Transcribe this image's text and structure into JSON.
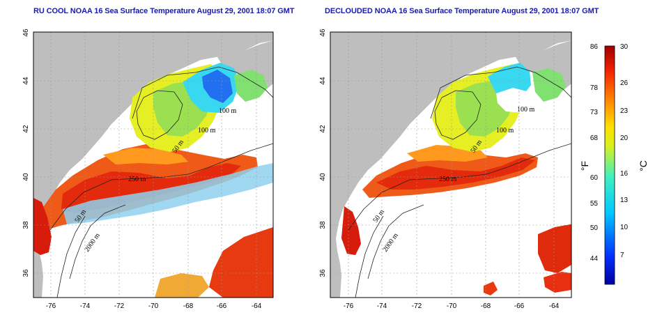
{
  "maps": [
    {
      "title": "RU COOL NOAA 16 Sea Surface Temperature August 29, 2001 18:07 GMT",
      "x_ticks": [
        "-76",
        "-74",
        "-72",
        "-70",
        "-68",
        "-66",
        "-64"
      ],
      "y_ticks": [
        "46",
        "44",
        "42",
        "40",
        "38",
        "36"
      ],
      "contour_labels": [
        "100 m",
        "100 m",
        "50 m",
        "250 m",
        "50 m",
        "2000 m"
      ]
    },
    {
      "title": "DECLOUDED NOAA 16 Sea Surface Temperature August 29, 2001 18:07 GMT",
      "x_ticks": [
        "-76",
        "-74",
        "-72",
        "-70",
        "-68",
        "-66",
        "-64"
      ],
      "y_ticks": [
        "46",
        "44",
        "42",
        "40",
        "38",
        "36"
      ],
      "contour_labels": [
        "100 m",
        "100 m",
        "50 m",
        "250 m",
        "50 m",
        "2000 m"
      ]
    }
  ],
  "colorbar": {
    "fahrenheit_ticks": [
      "86",
      "78",
      "73",
      "68",
      "60",
      "55",
      "50",
      "44"
    ],
    "celsius_ticks": [
      "30",
      "26",
      "23",
      "20",
      "16",
      "13",
      "10",
      "7"
    ],
    "fahrenheit_unit": "°F",
    "celsius_unit": "°C"
  },
  "colors": {
    "land": "#bebebe",
    "cloud": "#ffffff",
    "title": "#1a1ab0"
  }
}
